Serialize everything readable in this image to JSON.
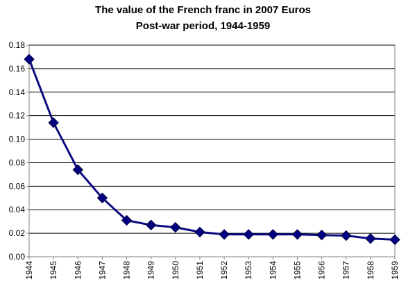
{
  "chart_data": {
    "type": "line",
    "title": "The value of the French franc in 2007 Euros",
    "subtitle": "Post-war period, 1944-1959",
    "xlabel": "",
    "ylabel": "",
    "categories": [
      "1944",
      "1945",
      "1946",
      "1947",
      "1948",
      "1949",
      "1950",
      "1951",
      "1952",
      "1953",
      "1954",
      "1955",
      "1956",
      "1957",
      "1958",
      "1959"
    ],
    "series": [
      {
        "values": [
          0.168,
          0.114,
          0.074,
          0.05,
          0.031,
          0.027,
          0.025,
          0.021,
          0.019,
          0.019,
          0.019,
          0.019,
          0.0185,
          0.018,
          0.0155,
          0.0145
        ]
      }
    ],
    "ylim": [
      0,
      0.18
    ],
    "yticks": [
      "0.00",
      "0.02",
      "0.04",
      "0.06",
      "0.08",
      "0.10",
      "0.12",
      "0.14",
      "0.16",
      "0.18"
    ],
    "grid": "horizontal",
    "marker": "diamond",
    "colors": {
      "line": "#0c0c80",
      "marker": "#000080",
      "grid": "#000000",
      "axis": "#808080"
    }
  }
}
